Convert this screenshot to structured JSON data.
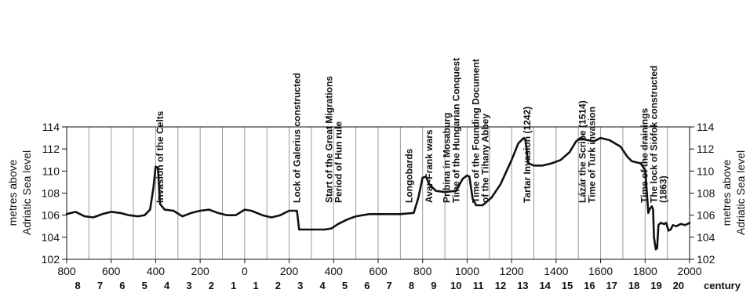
{
  "chart_data": {
    "type": "line",
    "title": "",
    "ylabel_left": [
      "metres above",
      "Adriatic Sea level"
    ],
    "ylabel_right": [
      "metres above",
      "Adriatic Sea level"
    ],
    "century_label": "century",
    "xlim": [
      -800,
      2000
    ],
    "ylim": [
      102,
      114
    ],
    "grid": "vertical lines every 100 years",
    "x_ticks": [
      {
        "value": -800,
        "label": "800"
      },
      {
        "value": -600,
        "label": "600"
      },
      {
        "value": -400,
        "label": "400"
      },
      {
        "value": -200,
        "label": "200"
      },
      {
        "value": 0,
        "label": "0"
      },
      {
        "value": 200,
        "label": "200"
      },
      {
        "value": 400,
        "label": "400"
      },
      {
        "value": 600,
        "label": "600"
      },
      {
        "value": 800,
        "label": "800"
      },
      {
        "value": 1000,
        "label": "1000"
      },
      {
        "value": 1200,
        "label": "1200"
      },
      {
        "value": 1400,
        "label": "1400"
      },
      {
        "value": 1600,
        "label": "1600"
      },
      {
        "value": 1800,
        "label": "1800"
      },
      {
        "value": 2000,
        "label": "2000"
      }
    ],
    "y_ticks": [
      102,
      104,
      106,
      108,
      110,
      112,
      114
    ],
    "centuries": [
      {
        "label": "8",
        "center": -750
      },
      {
        "label": "7",
        "center": -650
      },
      {
        "label": "6",
        "center": -550
      },
      {
        "label": "5",
        "center": -450
      },
      {
        "label": "4",
        "center": -350
      },
      {
        "label": "3",
        "center": -250
      },
      {
        "label": "2",
        "center": -150
      },
      {
        "label": "1",
        "center": -50
      },
      {
        "label": "1",
        "center": 50
      },
      {
        "label": "2",
        "center": 150
      },
      {
        "label": "3",
        "center": 250
      },
      {
        "label": "4",
        "center": 350
      },
      {
        "label": "5",
        "center": 450
      },
      {
        "label": "6",
        "center": 550
      },
      {
        "label": "7",
        "center": 650
      },
      {
        "label": "8",
        "center": 750
      },
      {
        "label": "9",
        "center": 850
      },
      {
        "label": "10",
        "center": 950
      },
      {
        "label": "11",
        "center": 1050
      },
      {
        "label": "12",
        "center": 1150
      },
      {
        "label": "13",
        "center": 1250
      },
      {
        "label": "14",
        "center": 1350
      },
      {
        "label": "15",
        "center": 1450
      },
      {
        "label": "16",
        "center": 1550
      },
      {
        "label": "17",
        "center": 1650
      },
      {
        "label": "18",
        "center": 1750
      },
      {
        "label": "19",
        "center": 1850
      },
      {
        "label": "20",
        "center": 1950
      }
    ],
    "series": [
      {
        "points": [
          [
            -800,
            106.1
          ],
          [
            -760,
            106.3
          ],
          [
            -720,
            105.9
          ],
          [
            -680,
            105.8
          ],
          [
            -640,
            106.1
          ],
          [
            -600,
            106.3
          ],
          [
            -560,
            106.2
          ],
          [
            -520,
            106.0
          ],
          [
            -480,
            105.9
          ],
          [
            -450,
            106.0
          ],
          [
            -425,
            106.5
          ],
          [
            -410,
            108.5
          ],
          [
            -400,
            110.4
          ],
          [
            -390,
            110.3
          ],
          [
            -380,
            107.0
          ],
          [
            -360,
            106.5
          ],
          [
            -320,
            106.4
          ],
          [
            -280,
            105.9
          ],
          [
            -240,
            106.2
          ],
          [
            -200,
            106.4
          ],
          [
            -160,
            106.5
          ],
          [
            -120,
            106.2
          ],
          [
            -80,
            106.0
          ],
          [
            -40,
            106.0
          ],
          [
            0,
            106.5
          ],
          [
            30,
            106.4
          ],
          [
            80,
            106.0
          ],
          [
            120,
            105.8
          ],
          [
            160,
            106.0
          ],
          [
            200,
            106.4
          ],
          [
            235,
            106.4
          ],
          [
            245,
            104.7
          ],
          [
            360,
            104.7
          ],
          [
            390,
            104.8
          ],
          [
            420,
            105.2
          ],
          [
            460,
            105.6
          ],
          [
            500,
            105.9
          ],
          [
            560,
            106.1
          ],
          [
            700,
            106.1
          ],
          [
            760,
            106.2
          ],
          [
            780,
            107.5
          ],
          [
            800,
            109.4
          ],
          [
            815,
            109.5
          ],
          [
            830,
            108.8
          ],
          [
            860,
            108.2
          ],
          [
            900,
            108.1
          ],
          [
            950,
            108.2
          ],
          [
            980,
            109.3
          ],
          [
            1000,
            109.6
          ],
          [
            1010,
            109.5
          ],
          [
            1025,
            107.5
          ],
          [
            1040,
            106.9
          ],
          [
            1070,
            106.9
          ],
          [
            1110,
            107.6
          ],
          [
            1150,
            108.8
          ],
          [
            1200,
            111.0
          ],
          [
            1230,
            112.5
          ],
          [
            1255,
            113.0
          ],
          [
            1262,
            112.8
          ],
          [
            1275,
            110.7
          ],
          [
            1300,
            110.5
          ],
          [
            1340,
            110.5
          ],
          [
            1380,
            110.7
          ],
          [
            1420,
            111.0
          ],
          [
            1460,
            111.7
          ],
          [
            1490,
            112.7
          ],
          [
            1510,
            113.0
          ],
          [
            1540,
            112.8
          ],
          [
            1570,
            112.7
          ],
          [
            1600,
            113.0
          ],
          [
            1640,
            112.8
          ],
          [
            1690,
            112.2
          ],
          [
            1720,
            111.3
          ],
          [
            1740,
            110.9
          ],
          [
            1780,
            110.7
          ],
          [
            1800,
            110.1
          ],
          [
            1808,
            108.0
          ],
          [
            1814,
            106.2
          ],
          [
            1822,
            106.6
          ],
          [
            1830,
            106.8
          ],
          [
            1836,
            106.5
          ],
          [
            1840,
            104.0
          ],
          [
            1848,
            102.9
          ],
          [
            1854,
            103.0
          ],
          [
            1860,
            105.1
          ],
          [
            1870,
            105.3
          ],
          [
            1885,
            105.2
          ],
          [
            1895,
            105.3
          ],
          [
            1905,
            104.6
          ],
          [
            1915,
            104.7
          ],
          [
            1925,
            105.1
          ],
          [
            1940,
            105.0
          ],
          [
            1960,
            105.2
          ],
          [
            1980,
            105.1
          ],
          [
            2000,
            105.3
          ]
        ]
      }
    ],
    "annotations": [
      {
        "lines": [
          "Invasion of the Celts"
        ],
        "x": -380
      },
      {
        "lines": [
          "Lock of Galerius constructed"
        ],
        "x": 235
      },
      {
        "lines": [
          "Start of the Great Migrations",
          "Period of Hun rule"
        ],
        "x": 400
      },
      {
        "lines": [
          "Longobards"
        ],
        "x": 740
      },
      {
        "lines": [
          "Avar-Frank wars"
        ],
        "x": 830
      },
      {
        "lines": [
          "Pribina in Mosaburg",
          "Time of the Hungarian Conquest"
        ],
        "x": 930
      },
      {
        "lines": [
          "Time of the Founding Document",
          "of the Tihany Abbey"
        ],
        "x": 1060
      },
      {
        "lines": [
          "Tartar Invasion (1242)"
        ],
        "x": 1270
      },
      {
        "lines": [
          "Lázár the Scribe (1514)",
          "Time of Turk invasion"
        ],
        "x": 1540
      },
      {
        "lines": [
          "Time of the drainings",
          "The lock of Siófok constructed",
          "(1863)"
        ],
        "x": 1840
      }
    ]
  }
}
